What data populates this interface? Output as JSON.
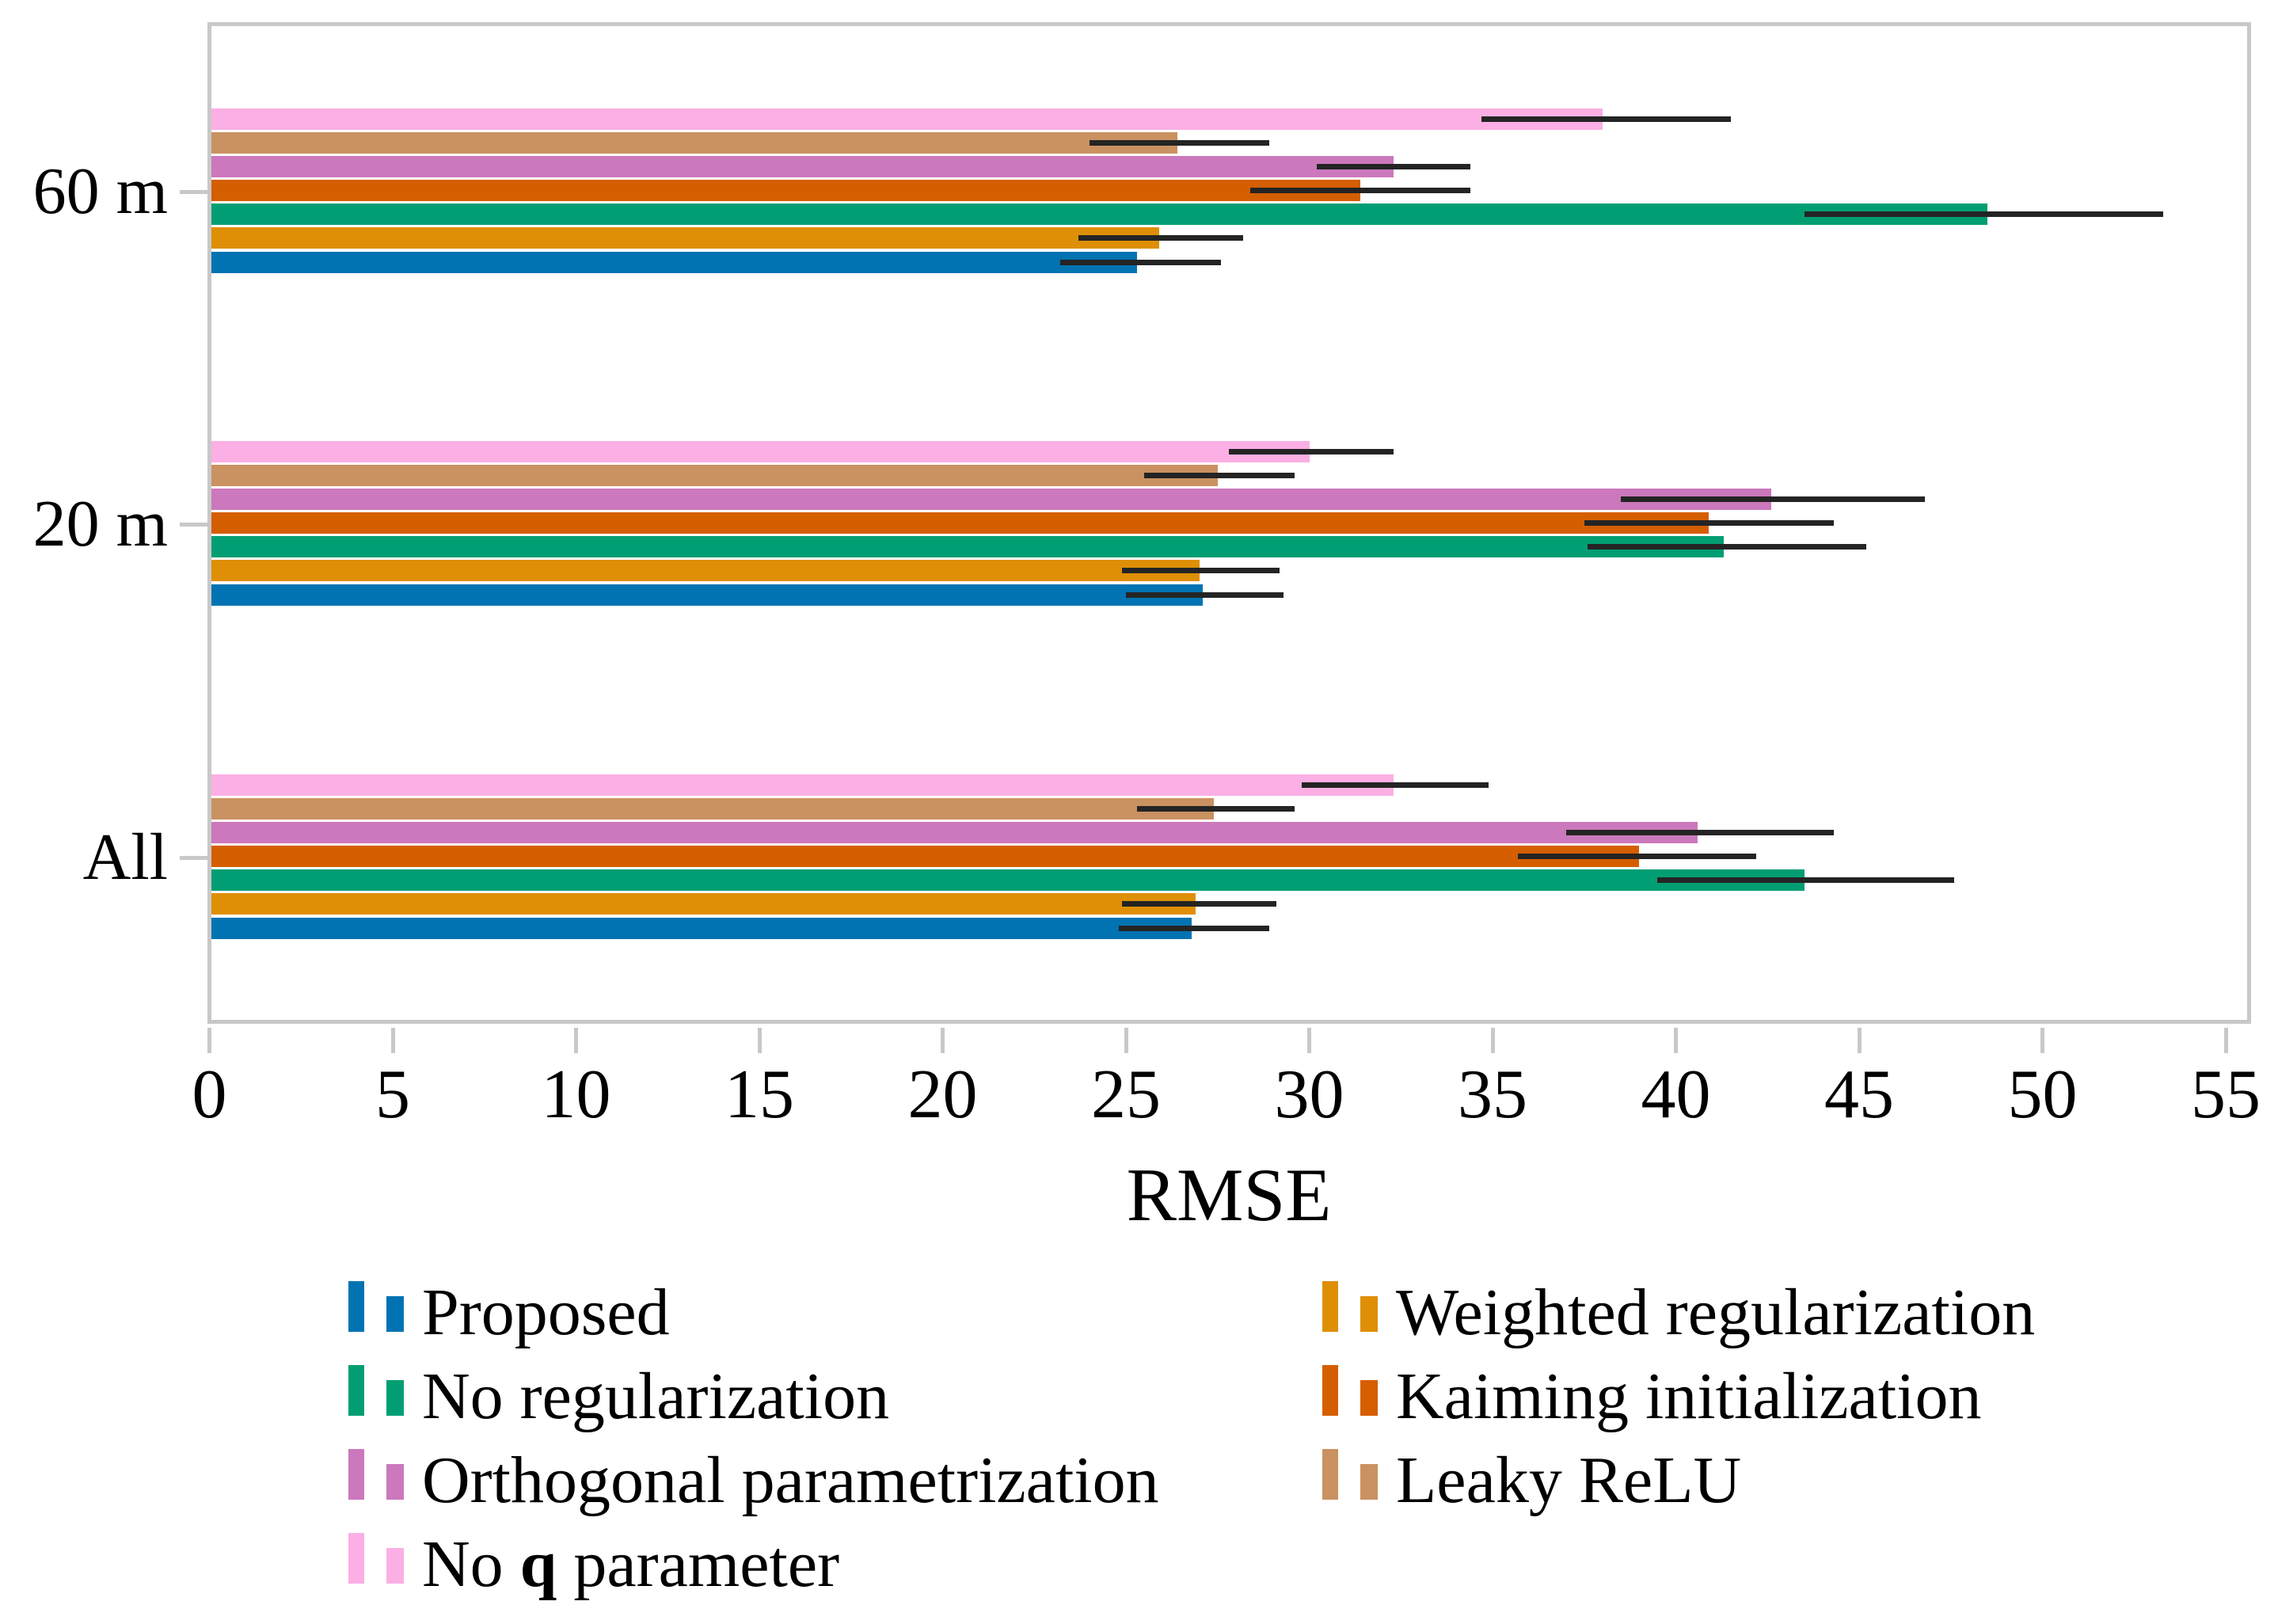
{
  "axis": {
    "xlabel": "RMSE",
    "xticks": [
      0,
      5,
      10,
      15,
      20,
      25,
      30,
      35,
      40,
      45,
      50,
      55
    ],
    "axis_color": "#c8c8c8",
    "error_bar_color": "#242424",
    "text_color": "#000000"
  },
  "chart_data": {
    "type": "bar",
    "orientation": "horizontal",
    "title": "",
    "xlabel": "RMSE",
    "ylabel": "",
    "xlim": [
      0,
      55.6
    ],
    "grid": false,
    "legend_position": "bottom",
    "categories": [
      "60 m",
      "20 m",
      "All"
    ],
    "series": [
      {
        "name": "Proposed",
        "color": "#0173b2",
        "values": [
          25.3,
          27.1,
          26.8
        ],
        "err_low": [
          23.2,
          25.0,
          24.8
        ],
        "err_high": [
          27.6,
          29.3,
          28.9
        ]
      },
      {
        "name": "Weighted regularization",
        "color": "#de8f05",
        "values": [
          25.9,
          27.0,
          26.9
        ],
        "err_low": [
          23.7,
          24.9,
          24.9
        ],
        "err_high": [
          28.2,
          29.2,
          29.1
        ]
      },
      {
        "name": "No regularization",
        "color": "#029e73",
        "values": [
          48.5,
          41.3,
          43.5
        ],
        "err_low": [
          43.5,
          37.6,
          39.5
        ],
        "err_high": [
          53.3,
          45.2,
          47.6
        ]
      },
      {
        "name": "Kaiming initialization",
        "color": "#d55e00",
        "values": [
          31.4,
          40.9,
          39.0
        ],
        "err_low": [
          28.4,
          37.5,
          35.7
        ],
        "err_high": [
          34.4,
          44.3,
          42.2
        ]
      },
      {
        "name": "Orthogonal parametrization",
        "color": "#cc78bc",
        "values": [
          32.3,
          42.6,
          40.6
        ],
        "err_low": [
          30.2,
          38.5,
          37.0
        ],
        "err_high": [
          34.4,
          46.8,
          44.3
        ]
      },
      {
        "name": "Leaky ReLU",
        "color": "#ca9161",
        "values": [
          26.4,
          27.5,
          27.4
        ],
        "err_low": [
          24.0,
          25.5,
          25.3
        ],
        "err_high": [
          28.9,
          29.6,
          29.6
        ]
      },
      {
        "name": "No q parameter",
        "color": "#fbafe4",
        "bold_word": "q",
        "values": [
          38.0,
          30.0,
          32.3
        ],
        "err_low": [
          34.7,
          27.8,
          29.8
        ],
        "err_high": [
          41.5,
          32.3,
          34.9
        ]
      }
    ],
    "row_order_top_to_bottom": [
      "No q parameter",
      "Leaky ReLU",
      "Orthogonal parametrization",
      "Kaiming initialization",
      "No regularization",
      "Weighted regularization",
      "Proposed"
    ],
    "legend_columns": [
      [
        "Proposed",
        "No regularization",
        "Orthogonal parametrization",
        "No q parameter"
      ],
      [
        "Weighted regularization",
        "Kaiming initialization",
        "Leaky ReLU"
      ]
    ]
  }
}
